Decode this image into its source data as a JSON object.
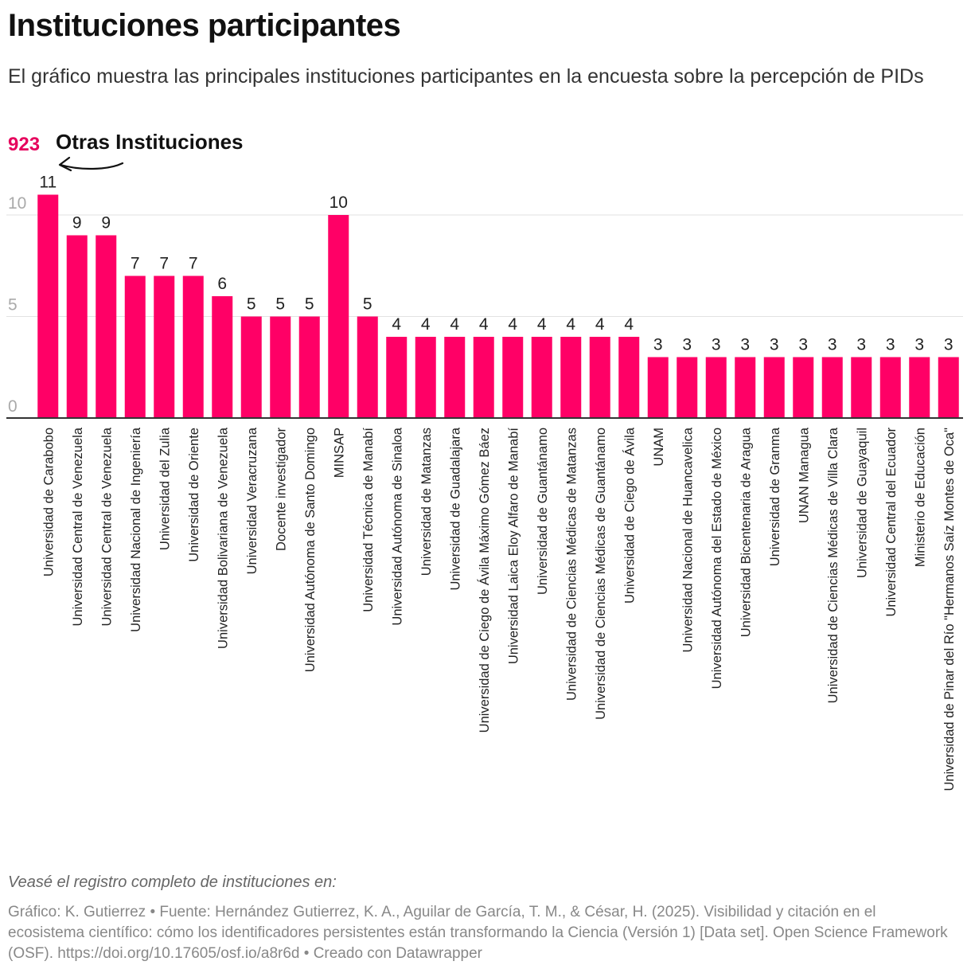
{
  "header": {
    "title": "Instituciones participantes",
    "subtitle": "El gráfico muestra las principales instituciones participantes en la encuesta sobre la percepción de PIDs"
  },
  "annotation": {
    "value": "923",
    "label": "Otras Instituciones"
  },
  "footer": {
    "notes": "Veasé el registro completo de instituciones en:",
    "source": "Gráfico: K. Gutierrez • Fuente: Hernández Gutierrez, K. A., Aguilar de García, T. M., & César, H. (2025). Visibilidad y citación en el ecosistema científico: cómo los identificadores persistentes están transformando la Ciencia (Versión 1) [Data set]. Open Science Framework (OSF). https://doi.org/10.17605/osf.io/a8r6d • Creado con Datawrapper"
  },
  "colors": {
    "bar": "#ff0066",
    "annotation_value": "#e6005c",
    "grid": "#e2e2e2",
    "axis": "#333333",
    "tick_label": "#aaaaaa"
  },
  "chart_data": {
    "type": "bar",
    "ylim": [
      0,
      11
    ],
    "yticks": [
      0,
      5,
      10
    ],
    "grid": true,
    "categories": [
      "Universidad de Carabobo",
      "Universidad Central de Venezuela",
      "Universidad Central de Venezuela",
      "Universidad Nacional de Ingeniería",
      "Universidad del Zulia",
      "Universidad de Oriente",
      "Universidad Bolivariana de Venezuela",
      "Universidad Veracruzana",
      "Docente investigador",
      "Universidad Autónoma de Santo Domingo",
      "MINSAP",
      "Universidad Técnica de Manabí",
      "Universidad Autónoma de Sinaloa",
      "Universidad de Matanzas",
      "Universidad de Guadalajara",
      "Universidad de Ciego de Ávila Máximo Gómez Báez",
      "Universidad Laica Eloy Alfaro de Manabí",
      "Universidad de Guantánamo",
      "Universidad de Ciencias Médicas de Matanzas",
      "Universidad de Ciencias Médicas de Guantánamo",
      "Universidad de Ciego de Ávila",
      "UNAM",
      "Universidad Nacional de Huancavelica",
      "Universidad Autónoma del Estado de México",
      "Universidad Bicentenaria de Aragua",
      "Universidad de Granma",
      "UNAN Managua",
      "Universidad de Ciencias Médicas de Villa Clara",
      "Universidad de Guayaquil",
      "Universidad Central del Ecuador",
      "Ministerio de Educación",
      "Universidad de Pinar del Río \"Hermanos Saíz Montes de Oca\""
    ],
    "values": [
      11,
      9,
      9,
      7,
      7,
      7,
      6,
      5,
      5,
      5,
      10,
      5,
      4,
      4,
      4,
      4,
      4,
      4,
      4,
      4,
      4,
      3,
      3,
      3,
      3,
      3,
      3,
      3,
      3,
      3,
      3,
      3
    ]
  }
}
